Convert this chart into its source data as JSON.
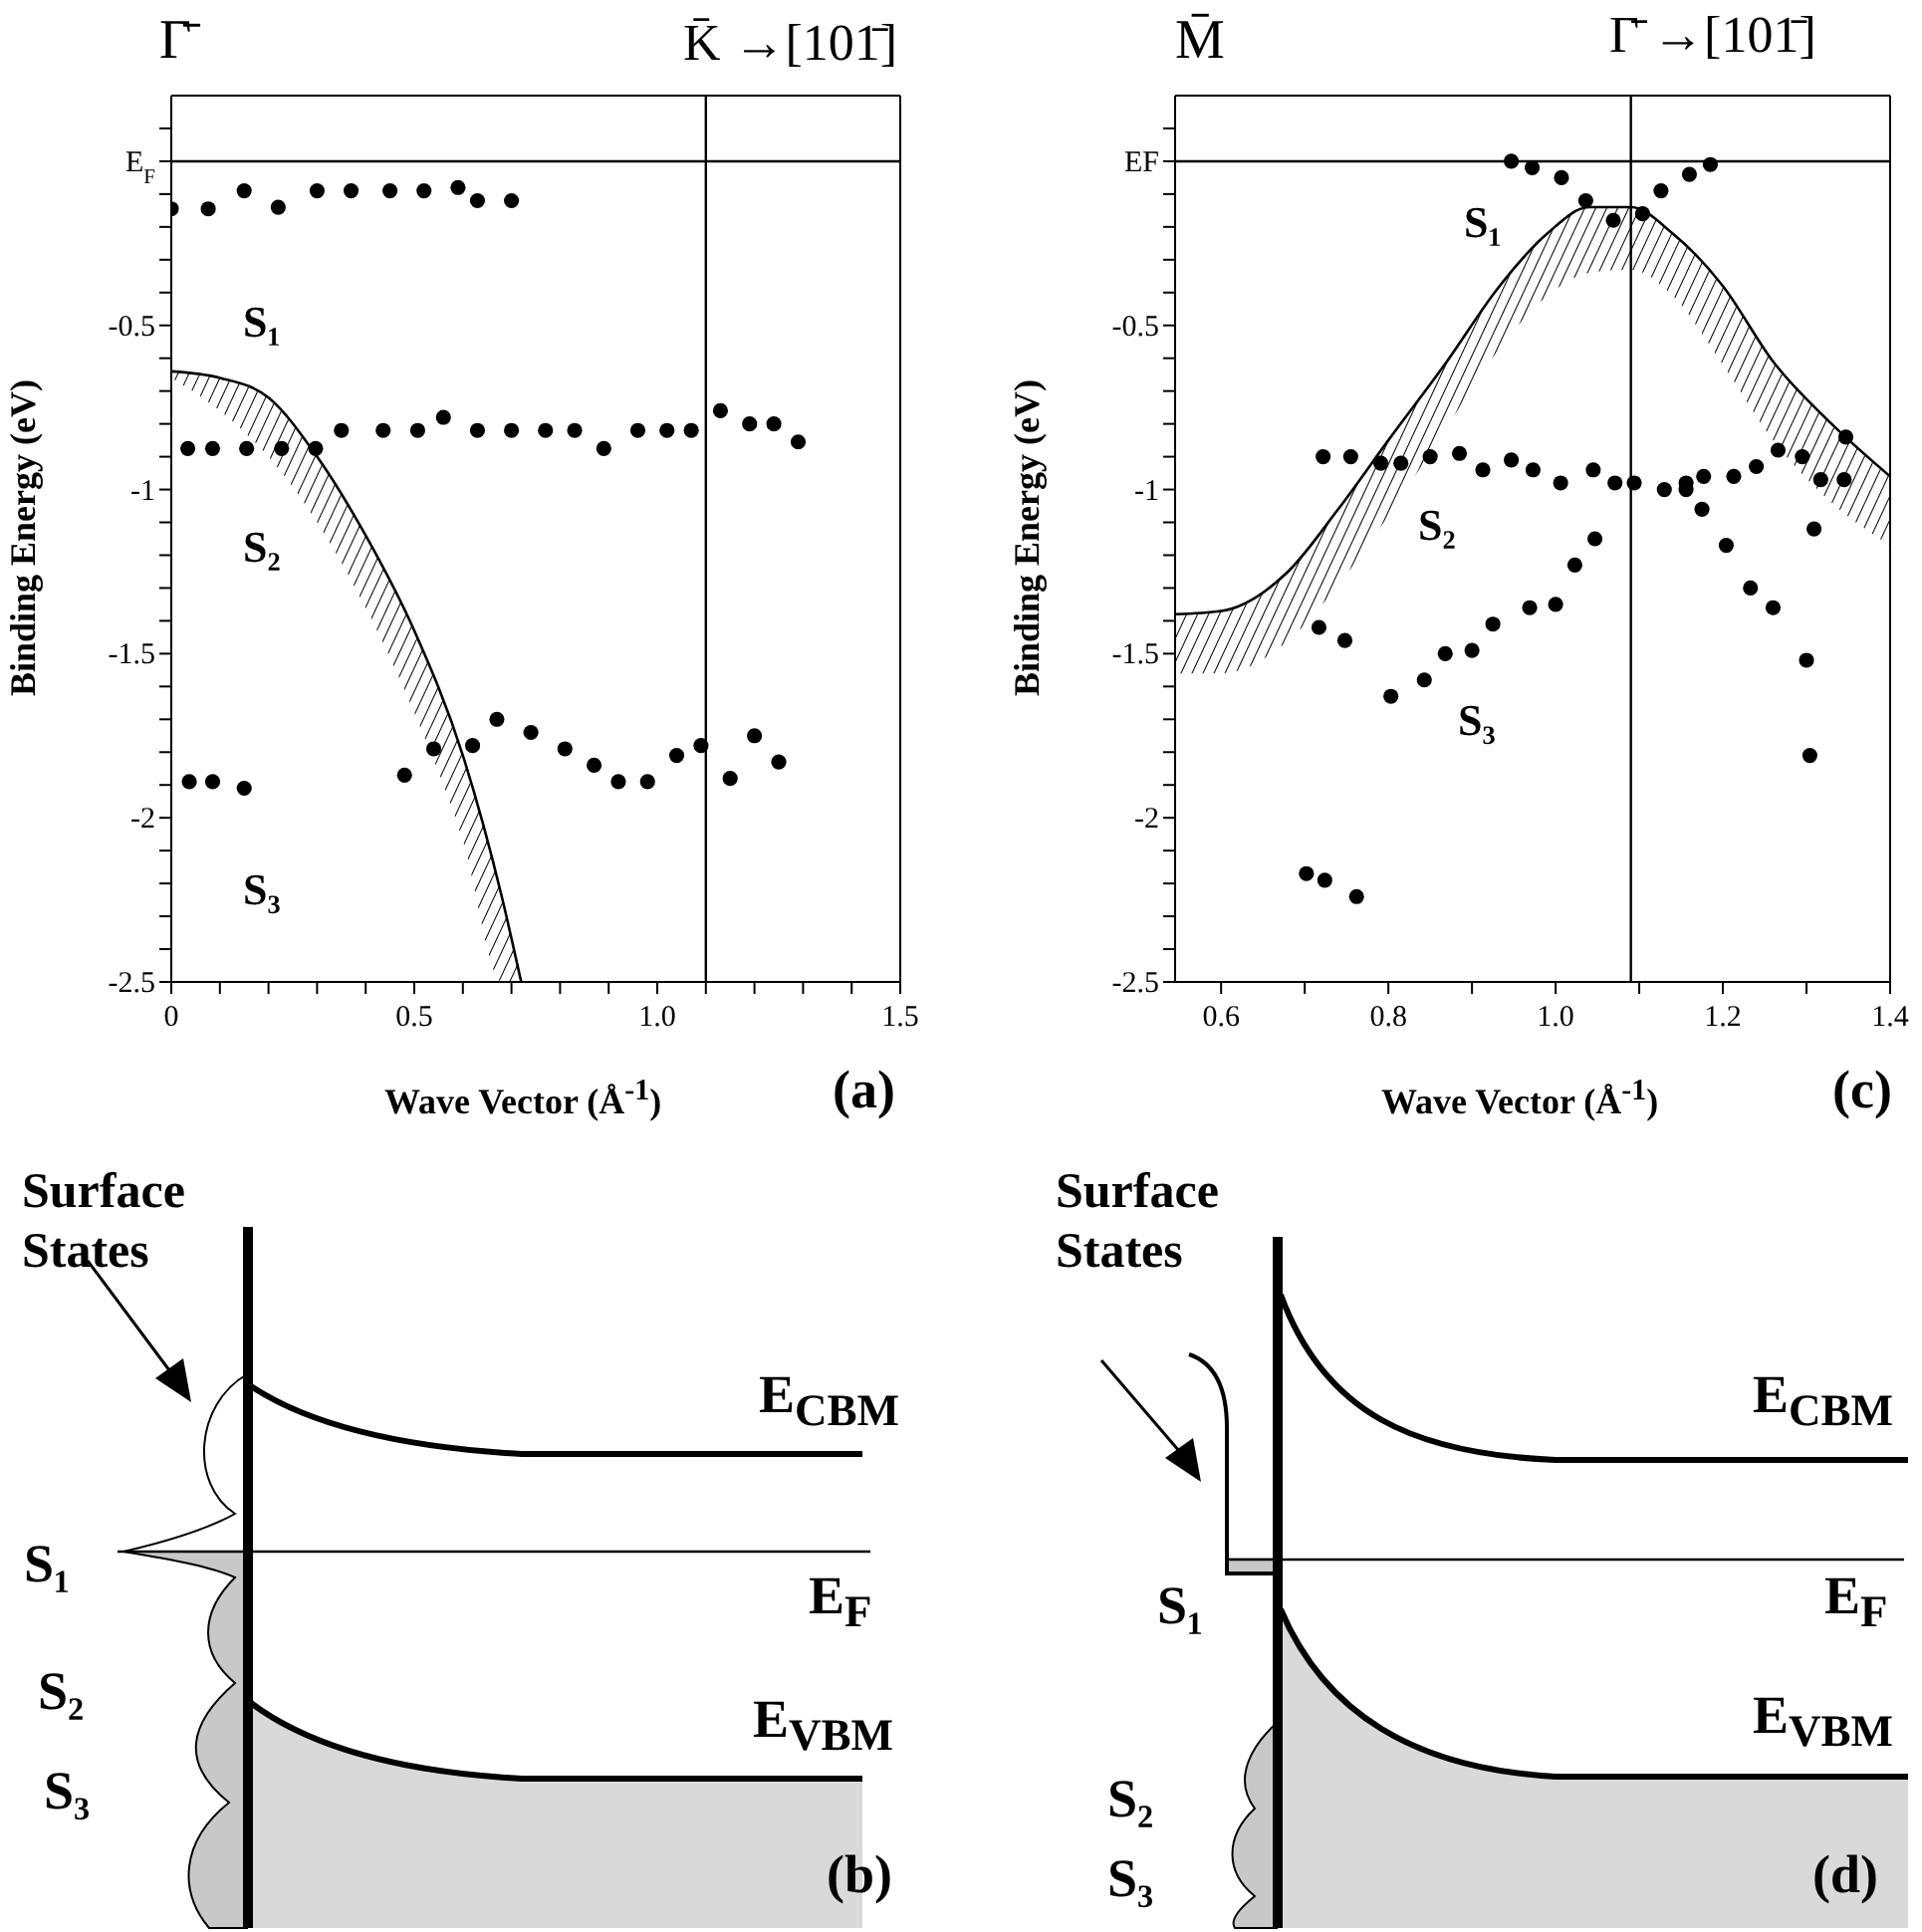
{
  "chart_data": [
    {
      "type": "scatter",
      "xlabel": "Wave Vector (Å$^{-1}$)",
      "ylabel": "Binding Energy (eV)",
      "marker": "circle",
      "xlim": [
        0,
        1.5
      ],
      "xticks": [
        0,
        {
          "value": 0.1,
          "label": null
        },
        {
          "value": 0.2,
          "label": null
        },
        {
          "value": 0.3,
          "label": null
        },
        {
          "value": 0.4,
          "label": null
        },
        0.5,
        {
          "value": 0.6,
          "label": null
        },
        {
          "value": 0.7,
          "label": null
        },
        {
          "value": 0.8,
          "label": null
        },
        {
          "value": 0.9,
          "label": null
        },
        {
          "value": 1,
          "label": "1.0"
        },
        {
          "value": 1.1,
          "label": null
        },
        {
          "value": 1.2,
          "label": null
        },
        {
          "value": 1.3,
          "label": null
        },
        {
          "value": 1.4,
          "label": null
        },
        1.5
      ],
      "ylim": [
        -2.5,
        0.2
      ],
      "yticks": [
        -2.5,
        {
          "value": -2.4,
          "label": null
        },
        {
          "value": -2.3,
          "label": null
        },
        {
          "value": -2.2,
          "label": null
        },
        {
          "value": -2.1,
          "label": null
        },
        -2,
        {
          "value": -1.9,
          "label": null
        },
        {
          "value": -1.8,
          "label": null
        },
        {
          "value": -1.7,
          "label": null
        },
        {
          "value": -1.6,
          "label": null
        },
        -1.5,
        {
          "value": -1.4,
          "label": null
        },
        {
          "value": -1.3,
          "label": null
        },
        {
          "value": -1.2,
          "label": null
        },
        {
          "value": -1.1,
          "label": null
        },
        -1,
        {
          "value": -0.9,
          "label": null
        },
        {
          "value": -0.8,
          "label": null
        },
        {
          "value": -0.7,
          "label": null
        },
        {
          "value": -0.6,
          "label": null
        },
        -0.5,
        {
          "value": -0.4,
          "label": null
        },
        {
          "value": -0.3,
          "label": null
        },
        {
          "value": -0.2,
          "label": null
        },
        {
          "value": -0.1,
          "label": null
        },
        {
          "value": 0,
          "label": "E$_{F}$"
        },
        {
          "value": 0.1,
          "label": null
        }
      ],
      "ref_lines": [
        {
          "axis": "x",
          "value": 1.1
        },
        {
          "axis": "y",
          "value": 0
        }
      ],
      "series": [
        {
          "color": "#000000",
          "x": [
            0,
            0.076,
            0.15,
            0.22,
            0.3,
            0.37,
            0.45,
            0.52,
            0.59,
            0.63,
            0.7
          ],
          "values": [
            -0.145,
            -0.145,
            -0.09,
            -0.14,
            -0.09,
            -0.09,
            -0.09,
            -0.09,
            -0.08,
            -0.12,
            -0.12
          ]
        },
        {
          "color": "#000000",
          "x": [
            0.034,
            0.085,
            0.155,
            0.227,
            0.297,
            0.35,
            0.436,
            0.507,
            0.56,
            0.63,
            0.7,
            0.77,
            0.83,
            0.89,
            0.96,
            1.02,
            1.07,
            1.13,
            1.19,
            1.24,
            1.29
          ],
          "values": [
            -0.875,
            -0.875,
            -0.875,
            -0.875,
            -0.875,
            -0.82,
            -0.82,
            -0.82,
            -0.78,
            -0.82,
            -0.82,
            -0.82,
            -0.82,
            -0.875,
            -0.82,
            -0.82,
            -0.82,
            -0.76,
            -0.8,
            -0.8,
            -0.855
          ]
        },
        {
          "color": "#000000",
          "x": [
            0.037,
            0.085,
            0.15,
            0.48,
            0.54,
            0.62,
            0.67,
            0.74,
            0.81,
            0.87,
            0.92,
            0.98,
            1.04,
            1.09,
            1.15,
            1.2,
            1.25
          ],
          "values": [
            -1.89,
            -1.89,
            -1.91,
            -1.87,
            -1.79,
            -1.78,
            -1.7,
            -1.74,
            -1.79,
            -1.84,
            -1.89,
            -1.89,
            -1.81,
            -1.78,
            -1.88,
            -1.75,
            -1.83
          ]
        },
        {
          "type": "line",
          "marker": "none",
          "color": "#000000",
          "x": [
            0,
            0.1,
            0.2,
            0.3,
            0.4,
            0.5,
            0.6,
            0.68,
            0.72
          ],
          "values": [
            -0.64,
            -0.66,
            -0.72,
            -0.9,
            -1.14,
            -1.43,
            -1.81,
            -2.24,
            -2.5
          ],
          "upper": [
            -0.64,
            -0.66,
            -0.72,
            -0.9,
            -1.14,
            -1.43,
            -1.81,
            -2.24,
            -2.5
          ],
          "lower": [
            -0.66,
            -0.76,
            -0.9,
            -1.1,
            -1.36,
            -1.68,
            -2.07,
            -2.5,
            -2.5
          ]
        }
      ],
      "annotations": [
        "Γ̄",
        "K̄ →[101̄]",
        "S₁",
        "S₂",
        "S₃",
        "(a)"
      ]
    },
    {
      "type": "scatter",
      "xlabel": "Wave Vector (Å$^{-1}$)",
      "ylabel": "Binding Energy (eV)",
      "marker": "circle",
      "xlim": [
        0.545,
        1.4
      ],
      "xticks": [
        0.6,
        {
          "value": 0.7,
          "label": null
        },
        0.8,
        {
          "value": 0.9,
          "label": null
        },
        {
          "value": 1,
          "label": "1.0"
        },
        {
          "value": 1.1,
          "label": null
        },
        1.2,
        {
          "value": 1.3,
          "label": null
        },
        1.4
      ],
      "ylim": [
        -2.5,
        0.2
      ],
      "yticks": [
        -2.5,
        {
          "value": -2.4,
          "label": null
        },
        {
          "value": -2.3,
          "label": null
        },
        {
          "value": -2.2,
          "label": null
        },
        {
          "value": -2.1,
          "label": null
        },
        -2,
        {
          "value": -1.9,
          "label": null
        },
        {
          "value": -1.8,
          "label": null
        },
        {
          "value": -1.7,
          "label": null
        },
        {
          "value": -1.6,
          "label": null
        },
        -1.5,
        {
          "value": -1.4,
          "label": null
        },
        {
          "value": -1.3,
          "label": null
        },
        {
          "value": -1.2,
          "label": null
        },
        {
          "value": -1.1,
          "label": null
        },
        -1,
        {
          "value": -0.9,
          "label": null
        },
        {
          "value": -0.8,
          "label": null
        },
        {
          "value": -0.7,
          "label": null
        },
        {
          "value": -0.6,
          "label": null
        },
        -0.5,
        {
          "value": -0.4,
          "label": null
        },
        {
          "value": -0.3,
          "label": null
        },
        {
          "value": -0.2,
          "label": null
        },
        {
          "value": -0.1,
          "label": null
        },
        {
          "value": 0,
          "label": "EF"
        },
        {
          "value": 0.1,
          "label": null
        }
      ],
      "ref_lines": [
        {
          "axis": "x",
          "value": 1.09
        },
        {
          "axis": "y",
          "value": 0
        }
      ],
      "series": [
        {
          "color": "#000000",
          "x": [
            0.947,
            0.972,
            1.007,
            1.036,
            1.069,
            1.104,
            1.126,
            1.16,
            1.185
          ],
          "values": [
            0,
            -0.02,
            -0.05,
            -0.12,
            -0.18,
            -0.16,
            -0.09,
            -0.04,
            -0.01
          ]
        },
        {
          "color": "#000000",
          "x": [
            0.722,
            0.755,
            0.791,
            0.815,
            0.85,
            0.885,
            0.913,
            0.947,
            0.973,
            1.006,
            1.045,
            1.071,
            1.094,
            1.13,
            1.156,
            1.156,
            1.177,
            1.213,
            1.24,
            1.266,
            1.295,
            1.317,
            1.345,
            1.347
          ],
          "values": [
            -0.9,
            -0.9,
            -0.92,
            -0.92,
            -0.9,
            -0.89,
            -0.94,
            -0.91,
            -0.94,
            -0.98,
            -0.94,
            -0.98,
            -0.98,
            -1,
            -0.98,
            -1,
            -0.96,
            -0.96,
            -0.93,
            -0.88,
            -0.9,
            -0.97,
            -0.97,
            -0.84
          ]
        },
        {
          "color": "#000000",
          "x": [
            0.717,
            0.748,
            0.803,
            0.843,
            0.868,
            0.9,
            0.925,
            0.969,
            1,
            1.023,
            1.047,
            1.175,
            1.204,
            1.233,
            1.26,
            1.309,
            1.3,
            1.304,
            0.702,
            0.724,
            0.762
          ],
          "values": [
            -1.42,
            -1.46,
            -1.63,
            -1.58,
            -1.5,
            -1.49,
            -1.41,
            -1.36,
            -1.35,
            -1.23,
            -1.15,
            -1.06,
            -1.17,
            -1.3,
            -1.36,
            -1.12,
            -1.52,
            -1.81,
            -2.17,
            -2.19,
            -2.24
          ]
        },
        {
          "type": "line",
          "marker": "none",
          "color": "#000000",
          "x": [
            0.545,
            0.6,
            0.68,
            0.74,
            0.8,
            0.87,
            0.93,
            0.99,
            1.04,
            1.09,
            1.14,
            1.2,
            1.26,
            1.33,
            1.4
          ],
          "values": [
            -1.38,
            -1.37,
            -1.25,
            -1.06,
            -0.85,
            -0.61,
            -0.39,
            -0.22,
            -0.14,
            -0.14,
            -0.22,
            -0.38,
            -0.61,
            -0.8,
            -0.96
          ],
          "upper": [
            -1.38,
            -1.37,
            -1.25,
            -1.06,
            -0.85,
            -0.61,
            -0.39,
            -0.22,
            -0.14,
            -0.14,
            -0.22,
            -0.38,
            -0.61,
            -0.8,
            -0.96
          ],
          "lower": [
            -1.56,
            -1.56,
            -1.46,
            -1.29,
            -1.08,
            -0.81,
            -0.58,
            -0.41,
            -0.34,
            -0.33,
            -0.41,
            -0.62,
            -0.85,
            -1.04,
            -1.17
          ]
        }
      ],
      "annotations": [
        "M̄",
        "Γ̄ →[101̄]",
        "S₁",
        "S₂",
        "S₃",
        "(c)"
      ]
    },
    {
      "type": "other",
      "annotations": [
        "Surface States",
        "S₁",
        "S₂",
        "S₃",
        "E$_{CBM}$",
        "E$_{F}$",
        "E$_{VBM}$",
        "(b)"
      ]
    },
    {
      "type": "other",
      "annotations": [
        "Surface States",
        "S₁",
        "S₂",
        "S₃",
        "E$_{CBM}$",
        "E$_{F}$",
        "E$_{VBM}$",
        "(d)"
      ]
    }
  ]
}
